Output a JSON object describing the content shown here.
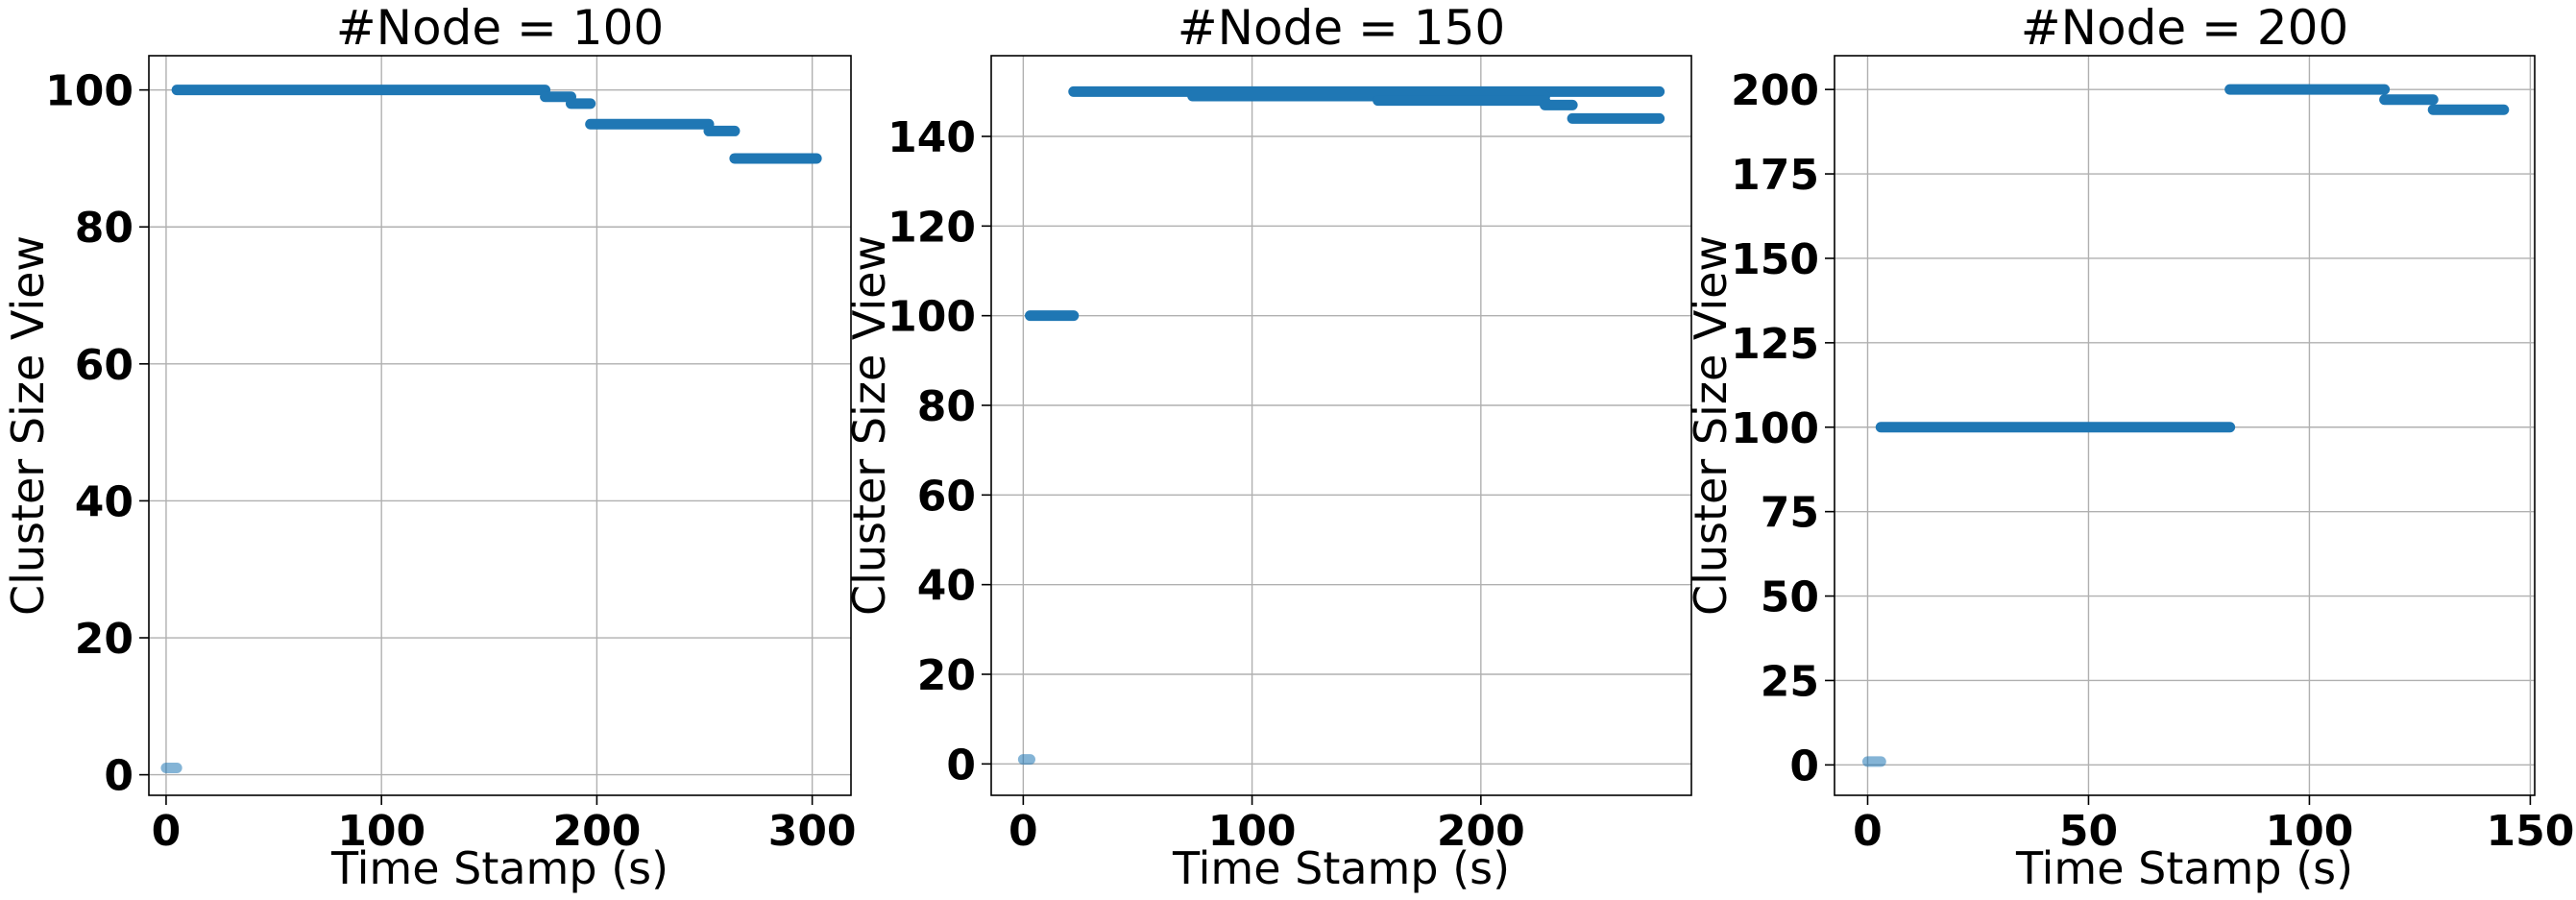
{
  "chart_data": [
    {
      "type": "scatter",
      "title": "#Node = 100",
      "xlabel": "Time Stamp (s)",
      "ylabel": "Cluster Size View",
      "xlim": [
        -8,
        318
      ],
      "ylim": [
        -3,
        105
      ],
      "xticks": [
        0,
        100,
        200,
        300
      ],
      "yticks": [
        0,
        20,
        40,
        60,
        80,
        100
      ],
      "grid": true,
      "color": "#1f77b4",
      "segments": [
        {
          "x0": 0,
          "x1": 5,
          "y": 1
        },
        {
          "x0": 5,
          "x1": 176,
          "y": 100
        },
        {
          "x0": 176,
          "x1": 188,
          "y": 99
        },
        {
          "x0": 188,
          "x1": 197,
          "y": 98
        },
        {
          "x0": 197,
          "x1": 252,
          "y": 95
        },
        {
          "x0": 252,
          "x1": 264,
          "y": 94
        },
        {
          "x0": 264,
          "x1": 302,
          "y": 90
        }
      ]
    },
    {
      "type": "scatter",
      "title": "#Node = 150",
      "xlabel": "Time Stamp (s)",
      "ylabel": "Cluster Size View",
      "xlim": [
        -14,
        292
      ],
      "ylim": [
        -7,
        158
      ],
      "xticks": [
        0,
        100,
        200
      ],
      "yticks": [
        0,
        20,
        40,
        60,
        80,
        100,
        120,
        140
      ],
      "grid": true,
      "color": "#1f77b4",
      "segments": [
        {
          "x0": 0,
          "x1": 3,
          "y": 1
        },
        {
          "x0": 3,
          "x1": 22,
          "y": 100
        },
        {
          "x0": 22,
          "x1": 278,
          "y": 150
        },
        {
          "x0": 74,
          "x1": 228,
          "y": 149
        },
        {
          "x0": 155,
          "x1": 228,
          "y": 148
        },
        {
          "x0": 228,
          "x1": 240,
          "y": 147
        },
        {
          "x0": 240,
          "x1": 278,
          "y": 144
        }
      ]
    },
    {
      "type": "scatter",
      "title": "#Node = 200",
      "xlabel": "Time Stamp (s)",
      "ylabel": "Cluster Size View",
      "xlim": [
        -7.5,
        151
      ],
      "ylim": [
        -9,
        210
      ],
      "xticks": [
        0,
        50,
        100,
        150
      ],
      "yticks": [
        0,
        25,
        50,
        75,
        100,
        125,
        150,
        175,
        200
      ],
      "grid": true,
      "color": "#1f77b4",
      "segments": [
        {
          "x0": 0,
          "x1": 3,
          "y": 1
        },
        {
          "x0": 3,
          "x1": 82,
          "y": 100
        },
        {
          "x0": 82,
          "x1": 117,
          "y": 200
        },
        {
          "x0": 117,
          "x1": 128,
          "y": 197
        },
        {
          "x0": 128,
          "x1": 144,
          "y": 194
        }
      ]
    }
  ]
}
